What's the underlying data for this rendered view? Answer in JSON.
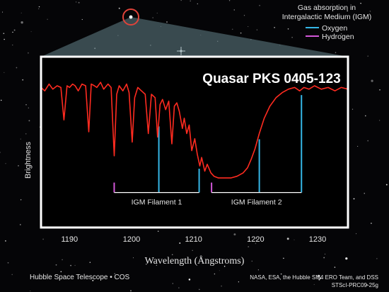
{
  "colors": {
    "background": "#050507",
    "spectrum": "#ff2b20",
    "oxygen": "#35b6e6",
    "hydrogen": "#d257d8",
    "frame": "#ffffff",
    "text": "#e6e6e6",
    "beam": "#6d8f98",
    "circle": "#e0433a"
  },
  "legend": {
    "title_line1": "Gas absorption in",
    "title_line2": "Intergalactic Medium (IGM)",
    "oxygen": "Oxygen",
    "hydrogen": "Hydrogen"
  },
  "credits": {
    "left": "Hubble Space Telescope • COS",
    "right_line1": "NASA, ESA, the Hubble SM4 ERO Team, and DSS",
    "right_line2": "STScI-PRC09-25g"
  },
  "chart_data": {
    "type": "line",
    "title": "Quasar PKS 0405-123",
    "xlabel": "Wavelength (Ångstroms)",
    "ylabel": "Brightness",
    "xlim": [
      1185.4,
      1234.9
    ],
    "ylim": [
      0,
      1
    ],
    "x_ticks": [
      1190,
      1200,
      1210,
      1220,
      1230
    ],
    "grid": false,
    "legend_position": "top-right",
    "series": [
      {
        "name": "Spectrum",
        "x": [
          1185.4,
          1186.0,
          1186.7,
          1187.3,
          1188.0,
          1188.6,
          1189.1,
          1189.6,
          1190.0,
          1190.5,
          1190.9,
          1191.4,
          1192.0,
          1192.6,
          1193.1,
          1193.5,
          1194.0,
          1194.4,
          1195.0,
          1195.5,
          1196.2,
          1196.7,
          1197.2,
          1197.6,
          1198.0,
          1198.6,
          1199.2,
          1199.6,
          1200.1,
          1200.5,
          1201.0,
          1201.6,
          1202.2,
          1202.7,
          1203.2,
          1203.8,
          1204.2,
          1204.6,
          1205.0,
          1205.5,
          1206.0,
          1206.5,
          1206.9,
          1207.3,
          1207.7,
          1208.2,
          1208.5,
          1208.9,
          1209.3,
          1209.7,
          1210.2,
          1210.6,
          1211.0,
          1211.3,
          1211.8,
          1212.2,
          1212.8,
          1213.3,
          1214.0,
          1215.0,
          1216.0,
          1217.0,
          1218.0,
          1218.7,
          1219.3,
          1219.9,
          1220.6,
          1221.4,
          1222.3,
          1223.3,
          1224.3,
          1225.3,
          1226.3,
          1227.1,
          1227.8,
          1228.6,
          1229.5,
          1230.6,
          1231.7,
          1232.8,
          1233.8,
          1234.9
        ],
        "y": [
          0.82,
          0.8,
          0.84,
          0.81,
          0.83,
          0.82,
          0.63,
          0.83,
          0.82,
          0.84,
          0.83,
          0.8,
          0.84,
          0.83,
          0.56,
          0.84,
          0.83,
          0.82,
          0.85,
          0.81,
          0.84,
          0.82,
          0.42,
          0.78,
          0.83,
          0.8,
          0.84,
          0.79,
          0.5,
          0.76,
          0.82,
          0.8,
          0.78,
          0.55,
          0.78,
          0.76,
          0.53,
          0.72,
          0.75,
          0.69,
          0.74,
          0.49,
          0.71,
          0.73,
          0.68,
          0.58,
          0.64,
          0.55,
          0.6,
          0.45,
          0.52,
          0.43,
          0.36,
          0.41,
          0.33,
          0.37,
          0.32,
          0.3,
          0.29,
          0.29,
          0.29,
          0.3,
          0.32,
          0.35,
          0.4,
          0.46,
          0.55,
          0.64,
          0.71,
          0.76,
          0.79,
          0.81,
          0.82,
          0.8,
          0.82,
          0.81,
          0.83,
          0.81,
          0.82,
          0.8,
          0.82,
          0.81
        ]
      }
    ],
    "oxygen_lines": [
      1204.4,
      1210.9,
      1220.6,
      1227.4
    ],
    "hydrogen_lines": [
      1197.2,
      1212.9
    ],
    "filaments": [
      {
        "label": "IGM Filament 1",
        "start": 1197.2,
        "end": 1210.9
      },
      {
        "label": "IGM Filament 2",
        "start": 1212.9,
        "end": 1227.4
      }
    ]
  }
}
